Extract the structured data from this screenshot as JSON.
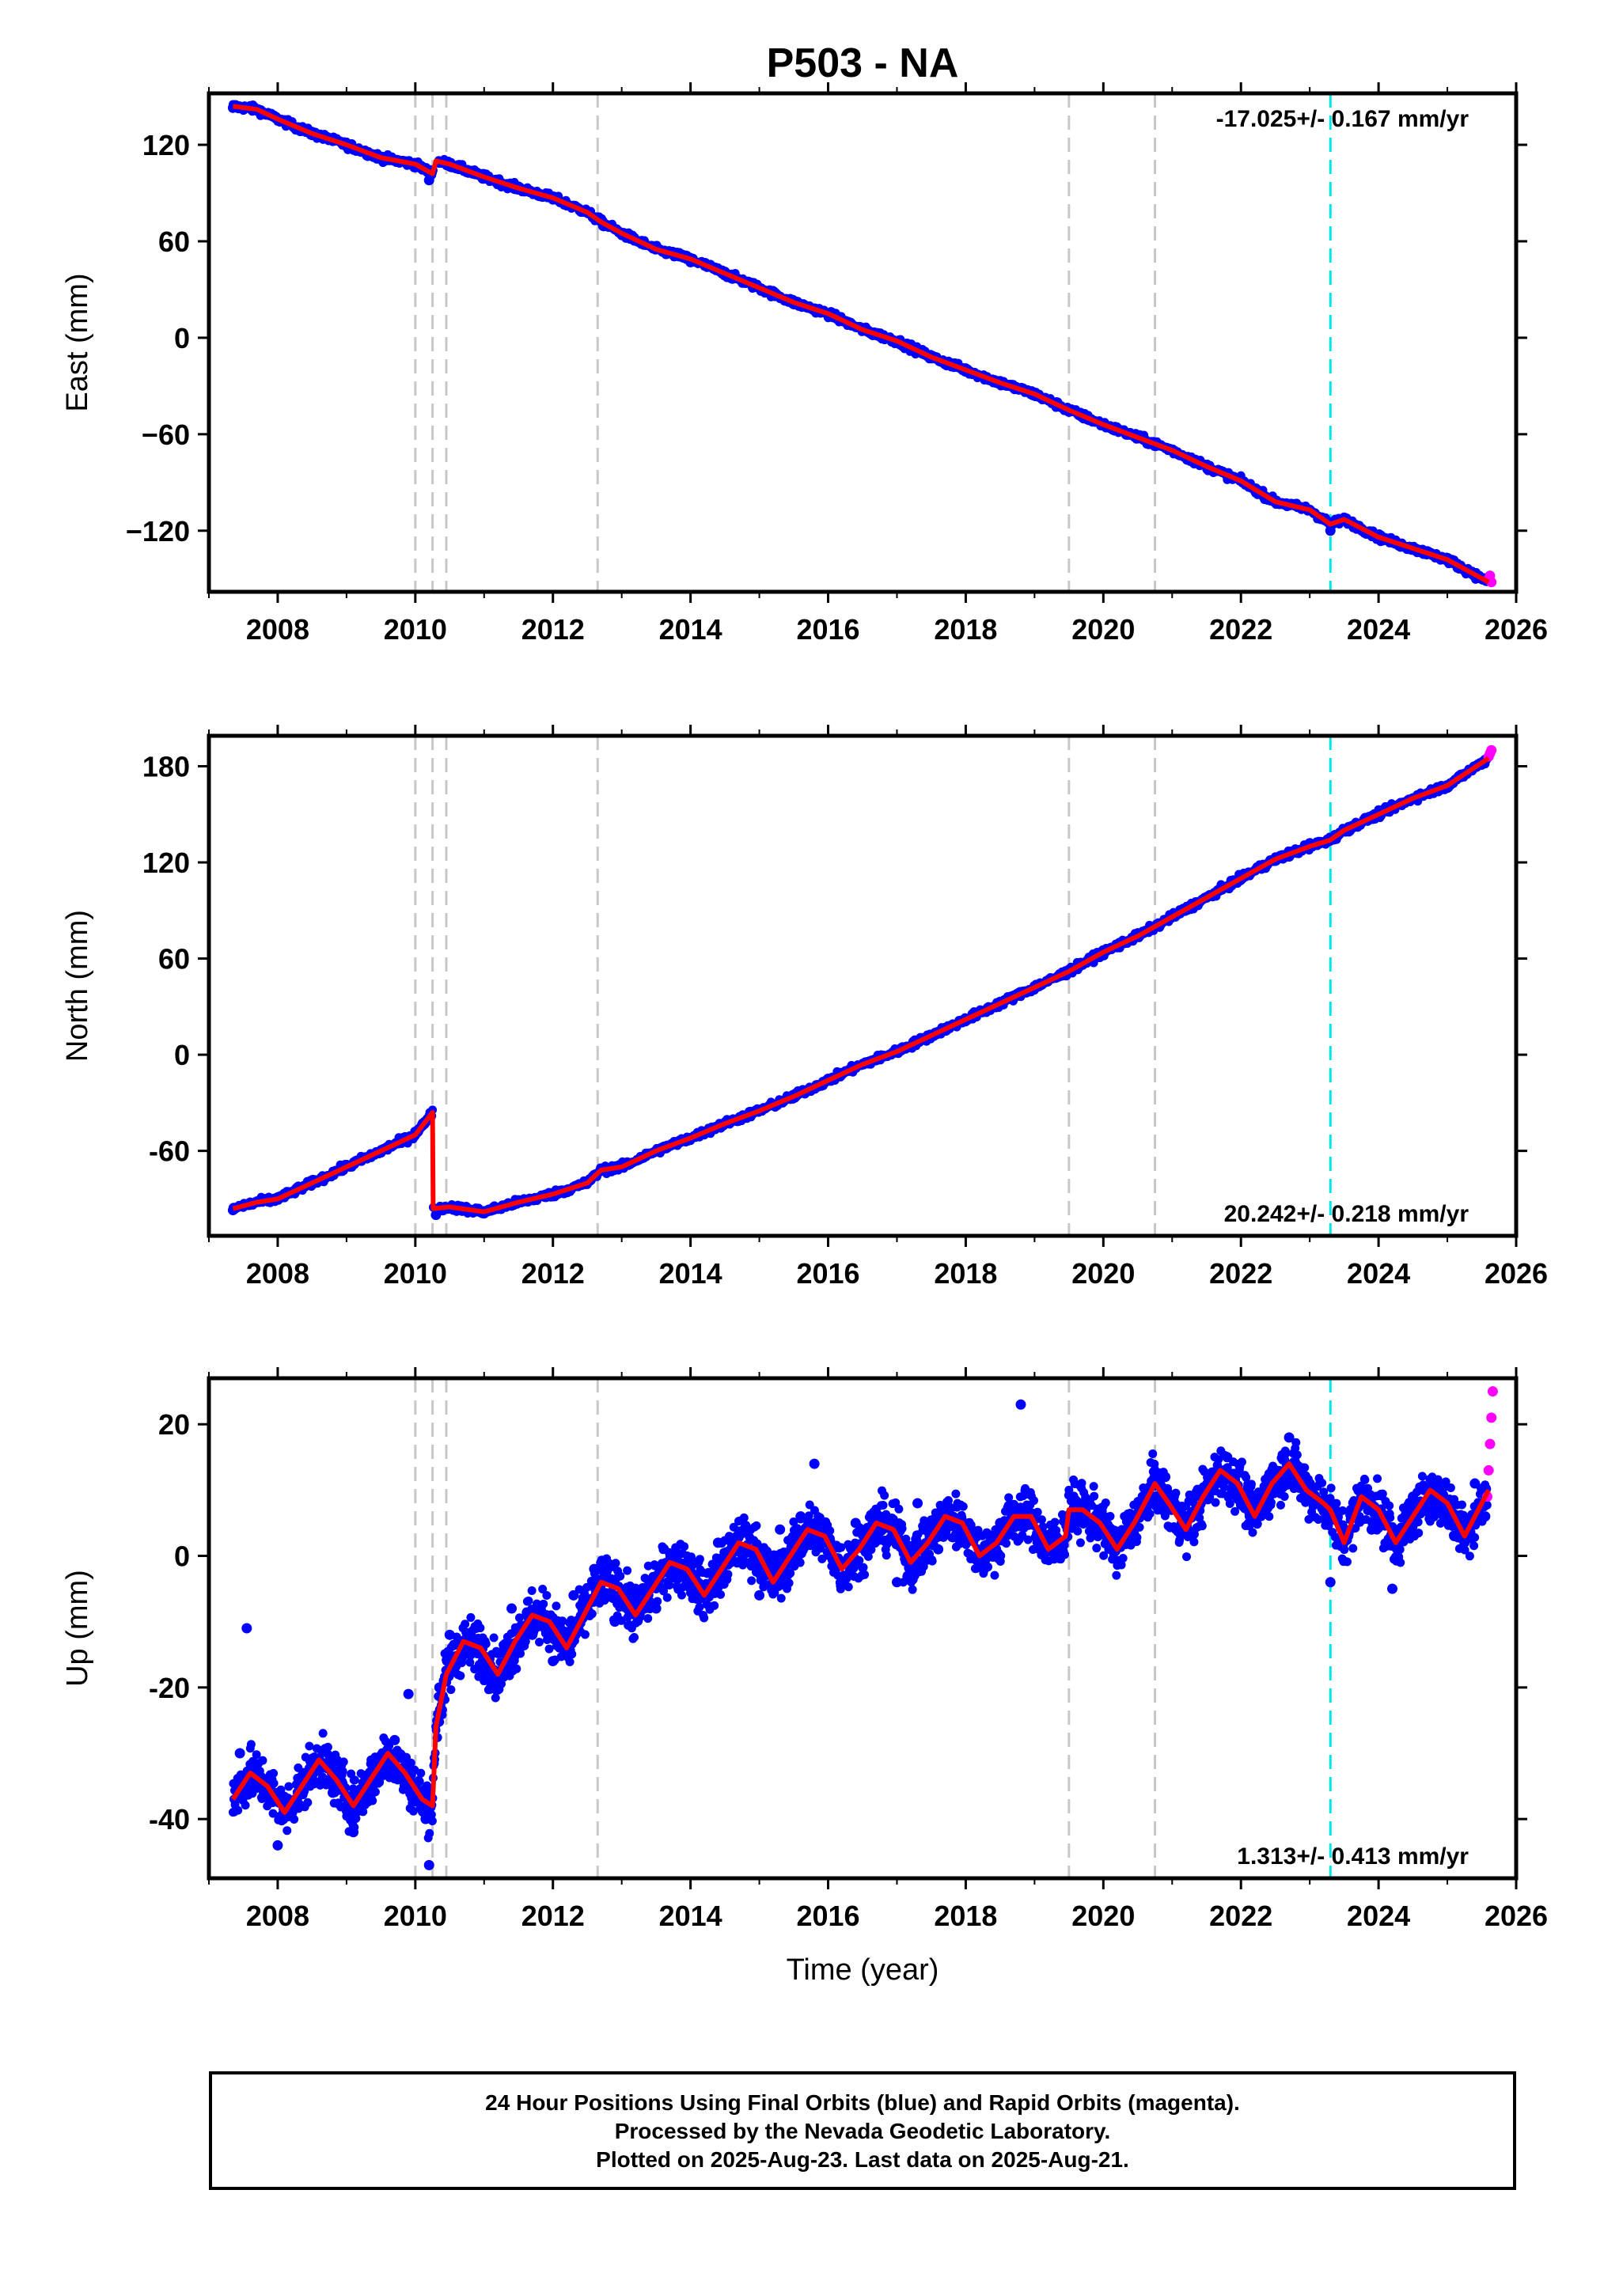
{
  "title": "P503 - NA",
  "colors": {
    "final_orbits": "#0000ff",
    "rapid_orbits": "#ff00ff",
    "model": "#ff0000",
    "event_line": "#c8c8c8",
    "antenna_change_line": "#00e5e5"
  },
  "footer": {
    "line1": "24 Hour Positions Using Final Orbits (blue) and Rapid Orbits (magenta).",
    "line2": "Processed by the Nevada Geodetic Laboratory.",
    "line3": "Plotted on 2025-Aug-23. Last data on 2025-Aug-21."
  },
  "chart_data": [
    {
      "type": "scatter",
      "ylabel": "East (mm)",
      "xlabel": "",
      "xlim": [
        2007.0,
        2026.0
      ],
      "ylim": [
        -158,
        152
      ],
      "xticks": [
        2008,
        2010,
        2012,
        2014,
        2016,
        2018,
        2020,
        2022,
        2024,
        2026
      ],
      "yticks": [
        -120,
        -60,
        0,
        60,
        120
      ],
      "rate_label": "-17.025+/- 0.167 mm/yr",
      "rate_position": "top-right",
      "event_lines": [
        2010.0,
        2010.25,
        2010.45,
        2012.65,
        2019.5,
        2020.75
      ],
      "antenna_lines": [
        2023.3
      ],
      "model": {
        "x": [
          2007.35,
          2007.7,
          2008.0,
          2008.5,
          2009.0,
          2009.5,
          2010.0,
          2010.25,
          2010.3,
          2010.5,
          2011.0,
          2011.5,
          2012.0,
          2012.5,
          2012.7,
          2013.0,
          2013.5,
          2014.0,
          2014.5,
          2015.0,
          2015.5,
          2016.0,
          2016.5,
          2017.0,
          2017.5,
          2018.0,
          2018.5,
          2019.0,
          2019.5,
          2020.0,
          2020.5,
          2021.0,
          2021.5,
          2022.0,
          2022.5,
          2023.0,
          2023.3,
          2023.5,
          2024.0,
          2024.5,
          2025.0,
          2025.6
        ],
        "y": [
          144,
          142,
          136,
          127,
          120,
          112,
          108,
          102,
          110,
          108,
          100,
          93,
          87,
          78,
          72,
          65,
          55,
          49,
          40,
          31,
          22,
          15,
          5,
          -2,
          -12,
          -20,
          -28,
          -35,
          -45,
          -54,
          -62,
          -70,
          -80,
          -89,
          -102,
          -107,
          -116,
          -113,
          -124,
          -131,
          -138,
          -152
        ]
      },
      "series": [
        {
          "name": "Final Orbits",
          "x": [
            2007.35,
            2007.6,
            2008.0,
            2008.5,
            2009.0,
            2009.5,
            2010.0,
            2010.2,
            2010.5,
            2011.0,
            2011.5,
            2012.0,
            2012.5,
            2013.0,
            2013.5,
            2014.0,
            2014.5,
            2015.0,
            2015.5,
            2016.0,
            2016.5,
            2017.0,
            2017.5,
            2018.0,
            2018.5,
            2019.0,
            2019.5,
            2020.0,
            2020.5,
            2021.0,
            2021.5,
            2022.0,
            2022.5,
            2023.0,
            2023.3,
            2023.5,
            2024.0,
            2024.5,
            2025.0,
            2025.55
          ],
          "y": [
            143,
            144,
            136,
            128,
            119,
            111,
            106,
            98,
            107,
            99,
            94,
            86,
            78,
            64,
            55,
            47,
            41,
            31,
            21,
            14,
            5,
            -3,
            -12,
            -20,
            -27,
            -36,
            -46,
            -54,
            -62,
            -70,
            -80,
            -88,
            -102,
            -107,
            -120,
            -112,
            -124,
            -131,
            -138,
            -150
          ]
        },
        {
          "name": "Rapid Orbits",
          "x": [
            2025.6,
            2025.62,
            2025.64
          ],
          "y": [
            -150,
            -148,
            -152
          ]
        }
      ]
    },
    {
      "type": "scatter",
      "ylabel": "North (mm)",
      "xlabel": "",
      "xlim": [
        2007.0,
        2026.0
      ],
      "ylim": [
        -113,
        199
      ],
      "xticks": [
        2008,
        2010,
        2012,
        2014,
        2016,
        2018,
        2020,
        2022,
        2024,
        2026
      ],
      "yticks": [
        -60,
        0,
        60,
        120,
        180
      ],
      "rate_label": "20.242+/- 0.218 mm/yr",
      "rate_position": "bottom-right",
      "event_lines": [
        2010.0,
        2010.25,
        2010.45,
        2012.65,
        2019.5,
        2020.75
      ],
      "antenna_lines": [
        2023.3
      ],
      "model": {
        "x": [
          2007.35,
          2007.7,
          2008.0,
          2008.5,
          2009.0,
          2009.5,
          2010.0,
          2010.25,
          2010.26,
          2010.5,
          2011.0,
          2011.5,
          2012.0,
          2012.5,
          2012.7,
          2013.0,
          2013.5,
          2014.0,
          2014.5,
          2015.0,
          2015.5,
          2016.0,
          2016.5,
          2017.0,
          2017.5,
          2018.0,
          2018.5,
          2019.0,
          2019.5,
          2020.0,
          2020.5,
          2021.0,
          2021.5,
          2022.0,
          2022.5,
          2023.0,
          2023.3,
          2023.5,
          2024.0,
          2024.5,
          2025.0,
          2025.6
        ],
        "y": [
          -96,
          -92,
          -90,
          -80,
          -70,
          -60,
          -50,
          -36,
          -96,
          -95,
          -98,
          -92,
          -87,
          -80,
          -72,
          -70,
          -60,
          -52,
          -43,
          -35,
          -26,
          -16,
          -6,
          2,
          12,
          22,
          32,
          42,
          52,
          64,
          74,
          86,
          98,
          110,
          122,
          130,
          134,
          140,
          150,
          160,
          168,
          185
        ]
      },
      "series": [
        {
          "name": "Final Orbits",
          "x": [
            2007.35,
            2007.6,
            2008.0,
            2008.5,
            2009.0,
            2009.5,
            2010.0,
            2010.2,
            2010.3,
            2010.5,
            2011.0,
            2011.5,
            2012.0,
            2012.5,
            2013.0,
            2013.5,
            2014.0,
            2014.5,
            2015.0,
            2015.5,
            2016.0,
            2016.5,
            2017.0,
            2017.5,
            2018.0,
            2018.5,
            2019.0,
            2019.5,
            2020.0,
            2020.5,
            2021.0,
            2021.5,
            2022.0,
            2022.5,
            2023.0,
            2023.5,
            2024.0,
            2024.5,
            2025.0,
            2025.55
          ],
          "y": [
            -97,
            -93,
            -89,
            -81,
            -69,
            -61,
            -48,
            -40,
            -100,
            -96,
            -99,
            -92,
            -87,
            -79,
            -69,
            -60,
            -52,
            -43,
            -35,
            -25,
            -15,
            -6,
            3,
            12,
            22,
            33,
            42,
            53,
            64,
            75,
            86,
            98,
            110,
            121,
            132,
            140,
            150,
            160,
            168,
            184
          ]
        },
        {
          "name": "Rapid Orbits",
          "x": [
            2025.6,
            2025.62,
            2025.64
          ],
          "y": [
            186,
            188,
            190
          ]
        }
      ]
    },
    {
      "type": "scatter",
      "ylabel": "Up (mm)",
      "xlabel": "Time (year)",
      "xlim": [
        2007.0,
        2026.0
      ],
      "ylim": [
        -49,
        27
      ],
      "xticks": [
        2008,
        2010,
        2012,
        2014,
        2016,
        2018,
        2020,
        2022,
        2024,
        2026
      ],
      "yticks": [
        -40,
        -20,
        0,
        20
      ],
      "rate_label": "1.313+/- 0.413 mm/yr",
      "rate_position": "bottom-right",
      "event_lines": [
        2010.0,
        2010.25,
        2010.45,
        2012.65,
        2019.5,
        2020.75
      ],
      "antenna_lines": [
        2023.3
      ],
      "model": {
        "x": [
          2007.35,
          2007.6,
          2007.85,
          2008.1,
          2008.35,
          2008.6,
          2008.85,
          2009.1,
          2009.35,
          2009.6,
          2009.85,
          2010.1,
          2010.25,
          2010.3,
          2010.45,
          2010.7,
          2010.95,
          2011.2,
          2011.45,
          2011.7,
          2011.95,
          2012.2,
          2012.45,
          2012.7,
          2012.95,
          2013.2,
          2013.45,
          2013.7,
          2013.95,
          2014.2,
          2014.45,
          2014.7,
          2014.95,
          2015.2,
          2015.45,
          2015.7,
          2015.95,
          2016.2,
          2016.45,
          2016.7,
          2016.95,
          2017.2,
          2017.45,
          2017.7,
          2017.95,
          2018.2,
          2018.45,
          2018.7,
          2018.95,
          2019.2,
          2019.45,
          2019.5,
          2019.7,
          2019.95,
          2020.2,
          2020.45,
          2020.7,
          2020.75,
          2020.95,
          2021.2,
          2021.45,
          2021.7,
          2021.95,
          2022.2,
          2022.45,
          2022.7,
          2022.95,
          2023.2,
          2023.3,
          2023.5,
          2023.75,
          2024.0,
          2024.25,
          2024.5,
          2024.75,
          2025.0,
          2025.25,
          2025.6
        ],
        "y": [
          -37,
          -33,
          -35,
          -39,
          -35,
          -31,
          -34,
          -38,
          -34,
          -30,
          -33,
          -37,
          -38,
          -26,
          -18,
          -13,
          -14,
          -18,
          -13,
          -9,
          -10,
          -14,
          -9,
          -4,
          -5,
          -9,
          -5,
          -1,
          -2,
          -6,
          -2,
          2,
          1,
          -4,
          0,
          4,
          3,
          -2,
          1,
          5,
          4,
          -1,
          2,
          6,
          5,
          0,
          2,
          6,
          6,
          1,
          3,
          7,
          7,
          5,
          1,
          5,
          10,
          11,
          8,
          4,
          9,
          13,
          11,
          6,
          11,
          14,
          10,
          8,
          7,
          2,
          9,
          7,
          2,
          6,
          10,
          8,
          3,
          10
        ]
      },
      "series": [
        {
          "name": "Final Orbits",
          "x": [
            2007.45,
            2007.55,
            2007.8,
            2008.0,
            2008.2,
            2008.5,
            2008.8,
            2009.1,
            2009.4,
            2009.7,
            2009.9,
            2010.15,
            2010.2,
            2010.35,
            2010.5,
            2010.8,
            2011.1,
            2011.4,
            2011.7,
            2012.0,
            2012.3,
            2012.6,
            2012.9,
            2013.2,
            2013.5,
            2013.8,
            2014.1,
            2014.4,
            2014.7,
            2015.0,
            2015.3,
            2015.6,
            2015.8,
            2016.1,
            2016.4,
            2016.7,
            2017.0,
            2017.3,
            2017.6,
            2017.9,
            2018.2,
            2018.5,
            2018.8,
            2019.1,
            2019.4,
            2019.7,
            2020.0,
            2020.3,
            2020.6,
            2020.9,
            2021.2,
            2021.5,
            2021.8,
            2022.1,
            2022.4,
            2022.7,
            2023.0,
            2023.3,
            2023.6,
            2023.9,
            2024.2,
            2024.5,
            2024.8,
            2025.1,
            2025.4,
            2025.55
          ],
          "y": [
            -30,
            -11,
            -36,
            -44,
            -38,
            -31,
            -36,
            -42,
            -33,
            -28,
            -21,
            -40,
            -47,
            -20,
            -12,
            -15,
            -20,
            -8,
            -12,
            -16,
            -6,
            -2,
            -10,
            -5,
            -8,
            -1,
            -4,
            2,
            3,
            -6,
            4,
            6,
            14,
            -2,
            5,
            3,
            -4,
            8,
            1,
            3,
            0,
            5,
            23,
            4,
            1,
            8,
            6,
            2,
            9,
            12,
            4,
            10,
            15,
            8,
            12,
            18,
            11,
            -4,
            7,
            4,
            -5,
            9,
            6,
            3,
            11,
            6
          ]
        },
        {
          "name": "Rapid Orbits",
          "x": [
            2025.58,
            2025.6,
            2025.62,
            2025.64,
            2025.66
          ],
          "y": [
            9,
            13,
            17,
            21,
            25
          ]
        }
      ]
    }
  ]
}
